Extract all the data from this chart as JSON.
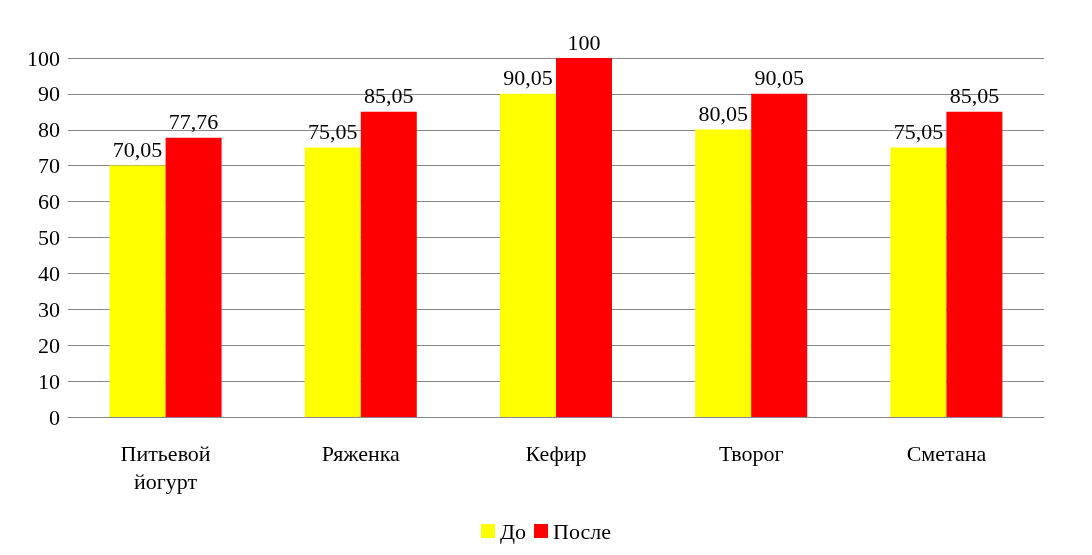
{
  "chart_data": {
    "type": "bar",
    "categories": [
      "Питьевой\nйогурт",
      "Ряженка",
      "Кефир",
      "Творог",
      "Сметана"
    ],
    "series": [
      {
        "name": "До",
        "color": "#ffff00",
        "values": [
          70.05,
          75.05,
          90.05,
          80.05,
          75.05
        ],
        "value_labels": [
          "70,05",
          "75,05",
          "90,05",
          "80,05",
          "75,05"
        ]
      },
      {
        "name": "После",
        "color": "#ff0000",
        "values": [
          77.76,
          85.05,
          100,
          90.05,
          85.05
        ],
        "value_labels": [
          "77,76",
          "85,05",
          "100",
          "90,05",
          "85,05"
        ]
      }
    ],
    "ylim": [
      0,
      100
    ],
    "yticks": [
      0,
      10,
      20,
      30,
      40,
      50,
      60,
      70,
      80,
      90,
      100
    ],
    "grid": "y",
    "legend": "bottom"
  }
}
